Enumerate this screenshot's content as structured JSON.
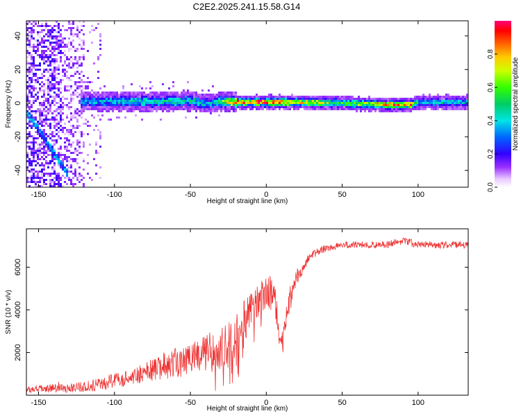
{
  "title": "C2E2.2025.241.15.58.G14",
  "chart_data": [
    {
      "type": "heatmap",
      "xlabel": "Height of straight line (km)",
      "ylabel": "Frequency (Hz)",
      "xlim": [
        -158,
        133
      ],
      "ylim": [
        -50,
        49
      ],
      "xticks": [
        -150,
        -100,
        -50,
        0,
        50,
        100
      ],
      "yticks": [
        -40,
        -20,
        0,
        20,
        40
      ],
      "colorbar": {
        "label": "Normalized spectral amplitude",
        "range": [
          0,
          1
        ],
        "ticks": [
          0.0,
          0.2,
          0.4,
          0.6,
          0.8
        ]
      },
      "features": [
        {
          "name": "main-line",
          "x": [
            -120,
            -100,
            -80,
            -60,
            -50,
            -40,
            -30,
            -20,
            0,
            20,
            50,
            80,
            95,
            100,
            133
          ],
          "freq": [
            1,
            1,
            1,
            1,
            1.5,
            -0.5,
            1,
            0.5,
            0.5,
            0.5,
            0,
            -1,
            -1,
            0.5,
            0.5
          ],
          "amplitude": [
            0.35,
            0.4,
            0.45,
            0.45,
            0.45,
            0.4,
            0.5,
            0.9,
            0.9,
            0.8,
            0.55,
            0.8,
            0.85,
            0.4,
            0.4
          ]
        },
        {
          "name": "diagonal-line",
          "x": [
            -158,
            -130
          ],
          "freq": [
            -5,
            -43
          ],
          "amplitude": 0.35
        },
        {
          "name": "noise-region",
          "x": [
            -158,
            -108
          ],
          "freq": [
            -50,
            49
          ],
          "amplitude": 0.1
        }
      ]
    },
    {
      "type": "line",
      "xlabel": "Height of straight line (km)",
      "ylabel": "SNR (10 * v/v)",
      "xlim": [
        -158,
        133
      ],
      "ylim": [
        0,
        7800
      ],
      "xticks": [
        -150,
        -100,
        -50,
        0,
        50,
        100
      ],
      "yticks": [
        2000,
        4000,
        6000
      ],
      "color": "#ee3333",
      "series": [
        {
          "x": [
            -158,
            -150,
            -140,
            -130,
            -120,
            -110,
            -100,
            -90,
            -80,
            -70,
            -60,
            -50,
            -40,
            -35,
            -30,
            -25,
            -20,
            -15,
            -10,
            -5,
            0,
            5,
            8,
            10,
            15,
            20,
            25,
            30,
            40,
            50,
            60,
            70,
            80,
            90,
            100,
            110,
            120,
            133
          ],
          "y": [
            250,
            300,
            320,
            350,
            400,
            500,
            700,
            850,
            1050,
            1300,
            1500,
            1700,
            1900,
            2100,
            2200,
            2600,
            2900,
            3400,
            4000,
            4500,
            4800,
            5000,
            3000,
            2400,
            4500,
            5500,
            6100,
            6600,
            6900,
            7050,
            7050,
            7050,
            7050,
            7250,
            7050,
            7050,
            7050,
            7050
          ],
          "spread": [
            150,
            180,
            200,
            220,
            250,
            300,
            350,
            400,
            500,
            600,
            700,
            800,
            900,
            1000,
            1000,
            1100,
            1100,
            1000,
            900,
            800,
            700,
            700,
            600,
            500,
            500,
            400,
            250,
            200,
            180,
            170,
            170,
            170,
            170,
            200,
            170,
            170,
            170,
            170
          ]
        }
      ]
    }
  ]
}
